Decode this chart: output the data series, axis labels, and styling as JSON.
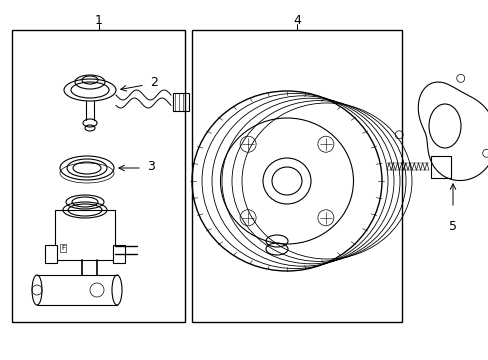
{
  "bg_color": "#ffffff",
  "line_color": "#000000",
  "lw": 0.8,
  "fig_width": 4.89,
  "fig_height": 3.6,
  "dpi": 100
}
